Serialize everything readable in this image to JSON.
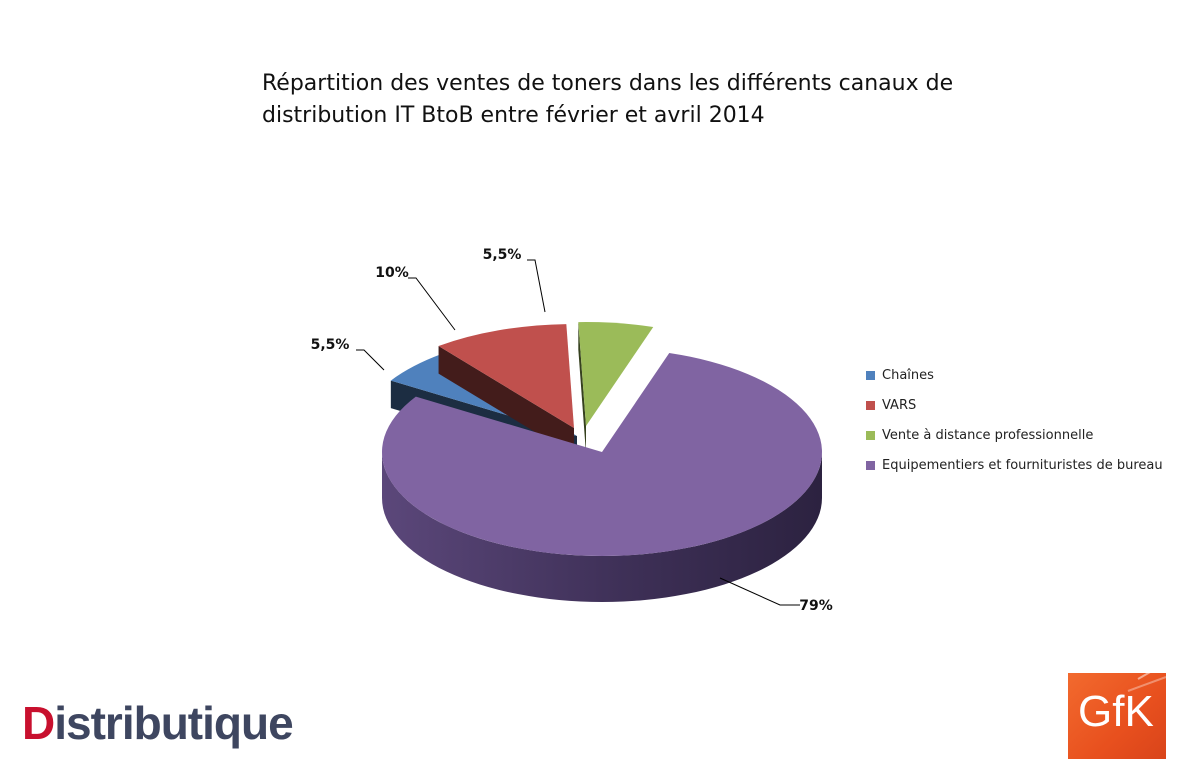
{
  "chart_data": {
    "type": "pie",
    "title": "Répartition des ventes de toners dans les différents canaux de distribution IT BtoB entre février et avril 2014",
    "categories": [
      "Chaînes",
      "VARS",
      "Vente à distance professionnelle",
      "Equipementiers et fournituristes de bureau"
    ],
    "values": [
      5.5,
      10,
      5.5,
      79
    ],
    "labels": [
      "5,5%",
      "10%",
      "5,5%",
      "79%"
    ],
    "colors": [
      "#4f81bd",
      "#c0504d",
      "#9bbb59",
      "#8064a2"
    ],
    "legend_position": "right",
    "style": "3d-exploded"
  },
  "logos": {
    "left": "Distributique",
    "right": "GfK"
  }
}
